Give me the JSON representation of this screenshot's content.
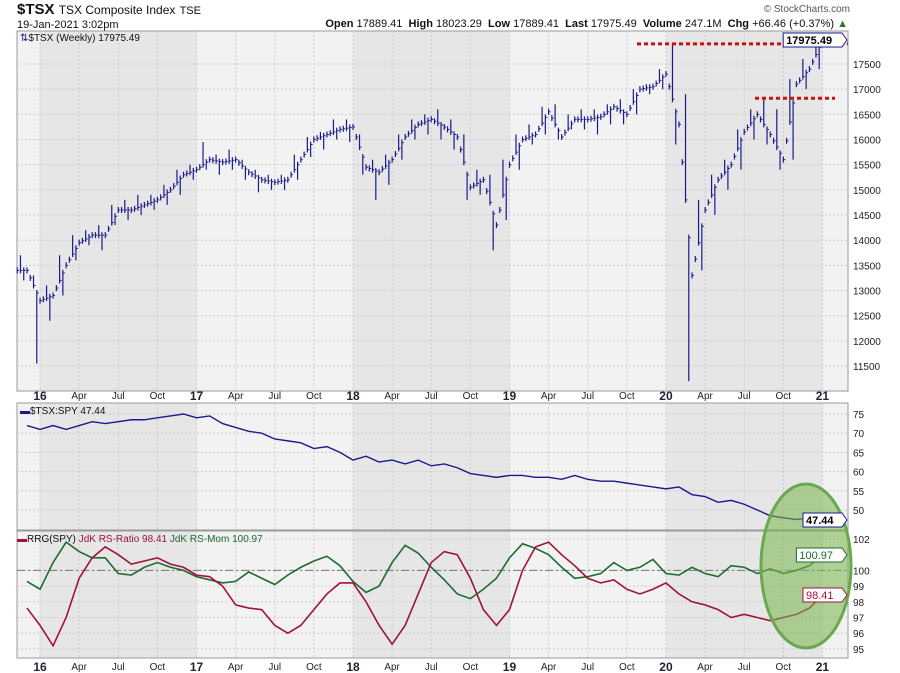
{
  "header": {
    "symbol": "$TSX",
    "name": "TSX Composite Index",
    "exchange": "TSE",
    "datetime": "19-Jan-2021 3:02pm",
    "open_label": "Open",
    "open": "17889.41",
    "high_label": "High",
    "high": "18023.29",
    "low_label": "Low",
    "low": "17889.41",
    "last_label": "Last",
    "last": "17975.49",
    "volume_label": "Volume",
    "volume": "247.1M",
    "chg_label": "Chg",
    "chg": "+66.46 (+0.37%)",
    "copyright": "© StockCharts.com"
  },
  "colors": {
    "price": "#1a1a8c",
    "rs": "#1a1a8c",
    "ratio": "#a0123c",
    "mom": "#1e6b32",
    "level": "#cc1111",
    "ellipse": "#7ab648"
  },
  "chart_data": [
    {
      "type": "line",
      "title": "$TSX (Weekly) 17975.49",
      "legend": "$TSX (Weekly) 17975.49",
      "ylim": [
        11000,
        18200
      ],
      "yticks": [
        11500,
        12000,
        12500,
        13000,
        13500,
        14000,
        14500,
        15000,
        15500,
        16000,
        16500,
        17000,
        17500
      ],
      "last_label": "17975.49",
      "x_start": "Dec 2015",
      "x_step": "month",
      "close": [
        13400,
        12800,
        12900,
        13500,
        13950,
        14100,
        14100,
        14600,
        14600,
        14700,
        14800,
        15000,
        15300,
        15400,
        15600,
        15550,
        15600,
        15350,
        15200,
        15150,
        15200,
        15600,
        16000,
        16100,
        16200,
        16250,
        15450,
        15350,
        15600,
        16050,
        16300,
        16400,
        16250,
        16050,
        15050,
        15200,
        14300,
        15500,
        16000,
        16100,
        16550,
        16050,
        16400,
        16400,
        16450,
        16650,
        16500,
        17000,
        17050,
        17300,
        16300,
        13300,
        14600,
        15200,
        15500,
        16150,
        16500,
        16100,
        15600,
        17100,
        17400,
        17975
      ],
      "high": [
        13700,
        13300,
        13100,
        13700,
        14100,
        14200,
        14300,
        14700,
        14800,
        14900,
        14900,
        15100,
        15400,
        15500,
        15950,
        15700,
        15800,
        15600,
        15400,
        15300,
        15300,
        15700,
        16050,
        16150,
        16400,
        16400,
        16100,
        15600,
        15700,
        16100,
        16400,
        16500,
        16600,
        16400,
        16100,
        15400,
        15300,
        15600,
        16100,
        16300,
        16650,
        16700,
        16500,
        16600,
        16600,
        16700,
        16800,
        17000,
        17100,
        17400,
        17900,
        16900,
        14800,
        15300,
        15600,
        16200,
        16600,
        16800,
        16600,
        17200,
        17600,
        18023
      ],
      "low": [
        13200,
        11550,
        12400,
        12900,
        13600,
        13900,
        13800,
        14300,
        14400,
        14500,
        14600,
        14700,
        14900,
        15200,
        15400,
        15300,
        15400,
        15200,
        14950,
        15000,
        15000,
        15200,
        15650,
        15800,
        16000,
        15950,
        15300,
        14800,
        15100,
        15600,
        16000,
        16100,
        16000,
        15800,
        14800,
        14900,
        13800,
        14400,
        15400,
        15900,
        16100,
        16000,
        16200,
        16200,
        16100,
        16300,
        16300,
        16500,
        16900,
        17000,
        15900,
        11200,
        13400,
        14500,
        15000,
        15400,
        16000,
        15900,
        15400,
        15600,
        17000,
        17400
      ],
      "levels": [
        {
          "value": 17900,
          "from": "Nov 2019"
        },
        {
          "value": 16820,
          "from": "Aug 2020"
        }
      ]
    },
    {
      "type": "line",
      "legend": "$TSX:SPY 47.44",
      "ylim": [
        46,
        77
      ],
      "yticks": [
        50,
        55,
        60,
        65,
        70,
        75
      ],
      "last_label": "47.44",
      "values": [
        72,
        71,
        72,
        71,
        72,
        73,
        72.5,
        73,
        73.5,
        73.5,
        74,
        74.5,
        75,
        74,
        74.5,
        72.5,
        71.5,
        70.5,
        70,
        68.5,
        68,
        67.5,
        66,
        66.5,
        65,
        63,
        64,
        62.5,
        63,
        62,
        63,
        61.5,
        62,
        61,
        59.5,
        59,
        58.5,
        59,
        59,
        58.5,
        58.5,
        58,
        59,
        58,
        57.5,
        57.5,
        57,
        56.5,
        56,
        55.5,
        56,
        54,
        53.5,
        52,
        52.5,
        51.5,
        50,
        48.5,
        48,
        47.5,
        48,
        47.44
      ]
    },
    {
      "type": "line",
      "legend_prefix": "RRG(SPY)",
      "legend_ratio": "JdK RS-Ratio 98.41",
      "legend_mom": "JdK RS-Mom 100.97",
      "ylim": [
        94.5,
        103
      ],
      "yticks": [
        95,
        96,
        97,
        98,
        99,
        100,
        102
      ],
      "ratio_label": "98.41",
      "mom_label": "100.97",
      "ratio": [
        97.6,
        96.5,
        95.2,
        97,
        99.5,
        100.8,
        101.5,
        101,
        100.4,
        100.6,
        100.8,
        100.4,
        100.2,
        99.7,
        99.6,
        99,
        97.8,
        97.6,
        97.5,
        96.5,
        96,
        96.5,
        97.5,
        98.5,
        99.2,
        99.2,
        98,
        96.5,
        95.3,
        96.5,
        98.5,
        100.5,
        101.2,
        101,
        99.5,
        97.5,
        96.5,
        97.5,
        100,
        101.5,
        101.8,
        101,
        100.3,
        99.5,
        99.2,
        99.4,
        98.8,
        98.5,
        98.8,
        99.2,
        98.5,
        98,
        97.8,
        97.5,
        97,
        97.2,
        97,
        96.8,
        97,
        97.2,
        97.6,
        98.41
      ],
      "mom": [
        99.3,
        98.8,
        100.5,
        101.8,
        101.2,
        100.8,
        100.8,
        99.8,
        99.7,
        100.2,
        100.5,
        100.2,
        100,
        99.6,
        99.4,
        99.2,
        99.3,
        99.9,
        99.5,
        99.1,
        99.7,
        100.2,
        100.6,
        100.9,
        100.3,
        99.3,
        98.6,
        99,
        100.5,
        101.6,
        101.1,
        100.2,
        99.4,
        98.5,
        98.2,
        98.8,
        99.5,
        100.8,
        101.7,
        101.4,
        101,
        100.2,
        99.5,
        99.6,
        99.8,
        100.5,
        100,
        100.2,
        100.7,
        99.8,
        99.7,
        100.2,
        99.8,
        99.6,
        100.3,
        100.2,
        99.8,
        100.1,
        99.8,
        100,
        100.3,
        100.97
      ]
    }
  ],
  "x_labels": [
    "16",
    "Apr",
    "Jul",
    "Oct",
    "17",
    "Apr",
    "Jul",
    "Oct",
    "18",
    "Apr",
    "Jul",
    "Oct",
    "19",
    "Apr",
    "Jul",
    "Oct",
    "20",
    "Apr",
    "Jul",
    "Oct",
    "21"
  ]
}
